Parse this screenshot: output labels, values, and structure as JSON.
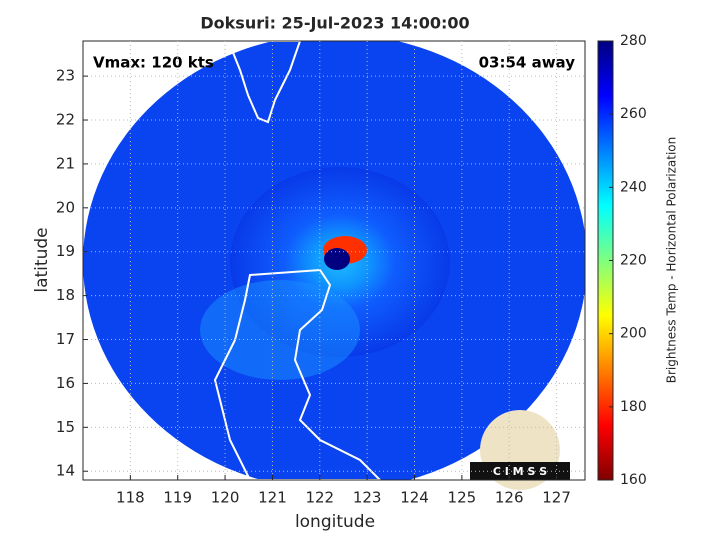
{
  "chart_data": {
    "type": "image",
    "title": "Doksuri: 25-Jul-2023 14:00:00",
    "annotations": [
      "Vmax: 120 kts",
      "03:54 away"
    ],
    "x_label": "longitude",
    "y_label": "latitude",
    "xlim": [
      117,
      127.6
    ],
    "ylim": [
      13.8,
      23.8
    ],
    "xticks": [
      118,
      119,
      120,
      121,
      122,
      123,
      124,
      125,
      126,
      127
    ],
    "yticks": [
      14,
      15,
      16,
      17,
      18,
      19,
      20,
      21,
      22,
      23
    ],
    "grid": true,
    "colorbar": {
      "label": "Brightness Temp - Horizontal Polarization",
      "clim": [
        160,
        280
      ],
      "ticks": [
        160,
        180,
        200,
        220,
        240,
        260,
        280
      ],
      "colormap": "jet"
    },
    "logo": "C I M S S"
  }
}
